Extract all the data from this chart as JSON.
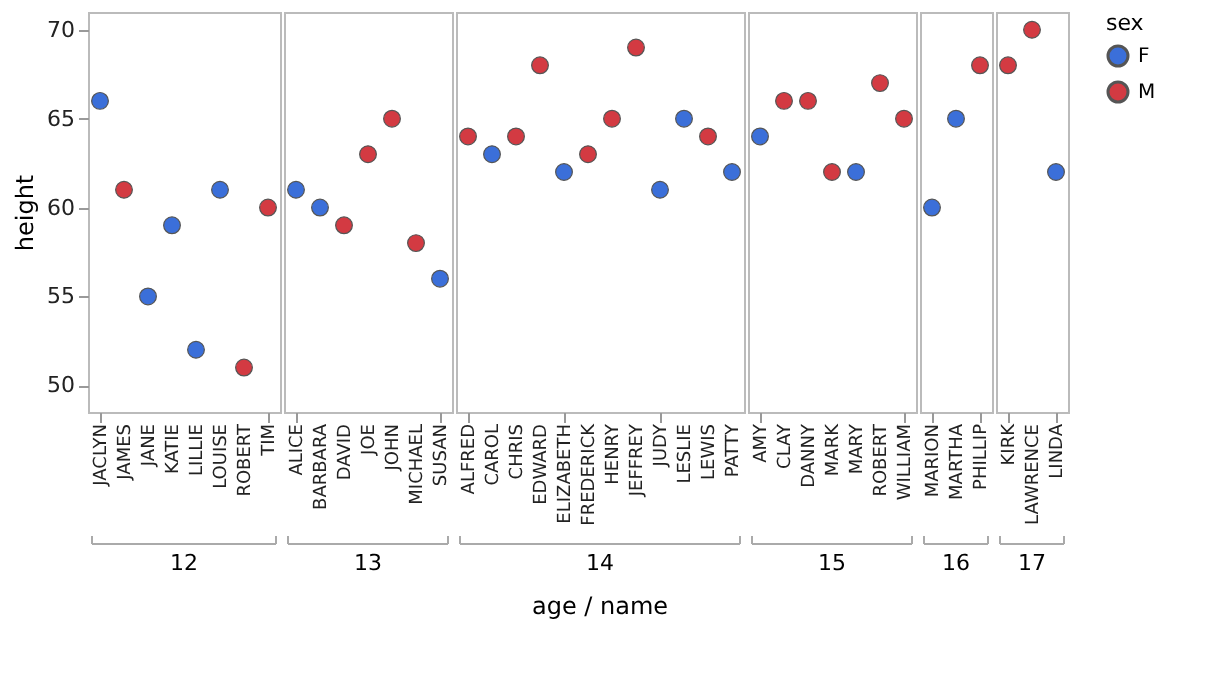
{
  "chart_data": [
    {
      "type": "scatter",
      "xlabel": "12",
      "ylabel": "height",
      "marker": "circle",
      "grid": false,
      "legend": "right",
      "legend_title": "sex",
      "categories": [
        "JACLYN",
        "JAMES",
        "JANE",
        "KATIE",
        "LILLIE",
        "LOUISE",
        "ROBERT",
        "TIM"
      ],
      "series": [
        {
          "name": "F",
          "color": "#3b6fd9",
          "values": [
            66,
            null,
            55,
            59,
            52,
            61,
            null,
            null
          ]
        },
        {
          "name": "M",
          "color": "#d33a42",
          "values": [
            null,
            61,
            null,
            null,
            null,
            null,
            51,
            60
          ]
        }
      ],
      "ylim": [
        48.5,
        71
      ],
      "yticks": [
        50,
        55,
        60,
        65,
        70
      ]
    },
    {
      "type": "scatter",
      "xlabel": "13",
      "marker": "circle",
      "grid": false,
      "tick_labels": "x",
      "categories": [
        "ALICE",
        "BARBARA",
        "DAVID",
        "JOE",
        "JOHN",
        "MICHAEL",
        "SUSAN"
      ],
      "series": [
        {
          "color": "#3b6fd9",
          "values": [
            61,
            60,
            null,
            null,
            null,
            null,
            56
          ]
        },
        {
          "color": "#d33a42",
          "values": [
            null,
            null,
            59,
            63,
            65,
            58,
            null
          ]
        }
      ],
      "ylim": [
        48.5,
        71
      ]
    },
    {
      "type": "scatter",
      "xlabel": "14",
      "marker": "circle",
      "grid": false,
      "tick_labels": "x",
      "annotations": [
        "age / name"
      ],
      "categories": [
        "ALFRED",
        "CAROL",
        "CHRIS",
        "EDWARD",
        "ELIZABETH",
        "FREDERICK",
        "HENRY",
        "JEFFREY",
        "JUDY",
        "LESLIE",
        "LEWIS",
        "PATTY"
      ],
      "series": [
        {
          "color": "#3b6fd9",
          "values": [
            null,
            63,
            null,
            null,
            62,
            null,
            null,
            null,
            61,
            65,
            null,
            62
          ]
        },
        {
          "color": "#d33a42",
          "values": [
            64,
            null,
            64,
            68,
            null,
            63,
            65,
            69,
            null,
            null,
            64,
            null
          ]
        }
      ],
      "ylim": [
        48.5,
        71
      ]
    },
    {
      "type": "scatter",
      "xlabel": "15",
      "marker": "circle",
      "grid": false,
      "tick_labels": "x",
      "categories": [
        "AMY",
        "CLAY",
        "DANNY",
        "MARK",
        "MARY",
        "ROBERT",
        "WILLIAM"
      ],
      "series": [
        {
          "color": "#3b6fd9",
          "values": [
            64,
            null,
            null,
            null,
            62,
            null,
            null
          ]
        },
        {
          "color": "#d33a42",
          "values": [
            null,
            66,
            66,
            62,
            null,
            67,
            65
          ]
        }
      ],
      "ylim": [
        48.5,
        71
      ]
    },
    {
      "type": "scatter",
      "xlabel": "16",
      "marker": "circle",
      "grid": false,
      "tick_labels": "x",
      "categories": [
        "MARION",
        "MARTHA",
        "PHILLIP"
      ],
      "series": [
        {
          "color": "#3b6fd9",
          "values": [
            60,
            65,
            null
          ]
        },
        {
          "color": "#d33a42",
          "values": [
            null,
            null,
            68
          ]
        }
      ],
      "ylim": [
        48.5,
        71
      ]
    },
    {
      "type": "scatter",
      "xlabel": "17",
      "marker": "circle",
      "grid": false,
      "tick_labels": "x",
      "categories": [
        "KIRK",
        "LAWRENCE",
        "LINDA"
      ],
      "series": [
        {
          "color": "#3b6fd9",
          "values": [
            null,
            null,
            62
          ]
        },
        {
          "color": "#d33a42",
          "values": [
            68,
            70,
            null
          ]
        }
      ],
      "ylim": [
        48.5,
        71
      ]
    }
  ]
}
